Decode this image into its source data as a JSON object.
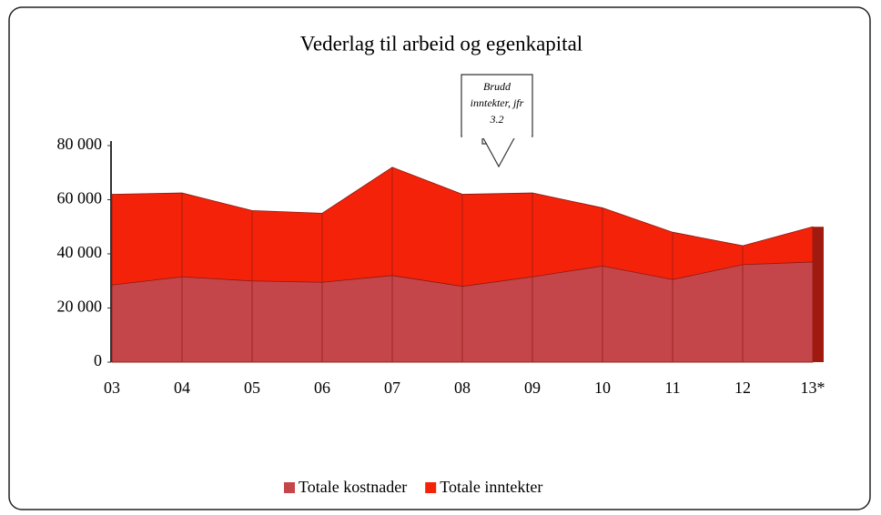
{
  "chart_data": {
    "type": "area",
    "title": "Vederlag til arbeid og egenkapital",
    "annotation": [
      "Brudd",
      "inntekter, jfr",
      "3.2"
    ],
    "categories": [
      "03",
      "04",
      "05",
      "06",
      "07",
      "08",
      "09",
      "10",
      "11",
      "12",
      "13*"
    ],
    "series": [
      {
        "name": "Totale kostnader",
        "color": "#c4464a",
        "values": [
          28500,
          31500,
          30000,
          29500,
          32000,
          28000,
          31500,
          35500,
          30500,
          36000,
          37000
        ]
      },
      {
        "name": "Totale inntekter",
        "color": "#f5220a",
        "values": [
          62000,
          62500,
          56000,
          55000,
          72000,
          62000,
          62500,
          57000,
          48000,
          43000,
          50000
        ]
      }
    ],
    "ylim": [
      0,
      80000
    ],
    "yticks": [
      0,
      {
        "value": 20000,
        "label": "20 000"
      },
      {
        "value": 40000,
        "label": "40 000"
      },
      {
        "value": 60000,
        "label": "60 000"
      },
      {
        "value": 80000,
        "label": "80 000"
      }
    ],
    "grid": false
  }
}
